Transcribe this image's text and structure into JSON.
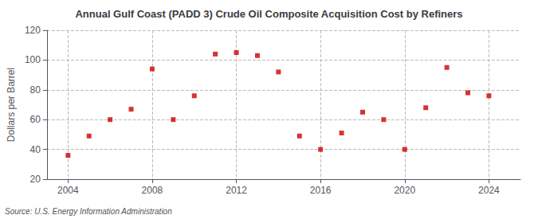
{
  "chart_data": {
    "type": "scatter",
    "title": "Annual Gulf Coast (PADD 3) Crude Oil Composite Acquisition Cost by Refiners",
    "ylabel": "Dollars per Barrel",
    "source": "Source: U.S. Energy Information Administration",
    "x": [
      2004,
      2005,
      2006,
      2007,
      2008,
      2009,
      2010,
      2011,
      2012,
      2013,
      2014,
      2015,
      2016,
      2017,
      2018,
      2019,
      2020,
      2021,
      2022,
      2023,
      2024
    ],
    "values": [
      36,
      49,
      60,
      67,
      94,
      60,
      76,
      104,
      105,
      103,
      92,
      49,
      40,
      51,
      65,
      60,
      40,
      68,
      95,
      78,
      76
    ],
    "color": "#cc0000",
    "marker": "square",
    "xlim": [
      2003.0,
      2025.5
    ],
    "ylim": [
      20,
      120
    ],
    "xticks": [
      2004,
      2008,
      2012,
      2016,
      2020,
      2024
    ],
    "yticks": [
      20,
      40,
      60,
      80,
      100,
      120
    ],
    "grid": true
  }
}
